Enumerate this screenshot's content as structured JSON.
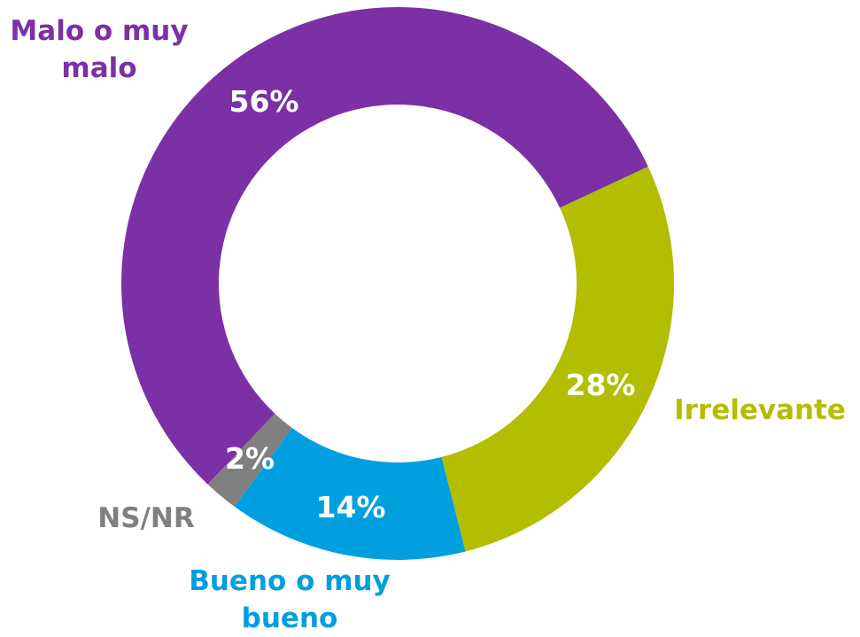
{
  "chart_data": {
    "type": "donut",
    "categories": [
      "Malo o muy malo",
      "Irrelevante",
      "Bueno o muy bueno",
      "NS/NR"
    ],
    "values": [
      56,
      28,
      14,
      2
    ],
    "value_labels": [
      "56%",
      "28%",
      "14%",
      "2%"
    ],
    "colors": [
      "#7b30a6",
      "#b3be00",
      "#009fdf",
      "#808080"
    ]
  }
}
